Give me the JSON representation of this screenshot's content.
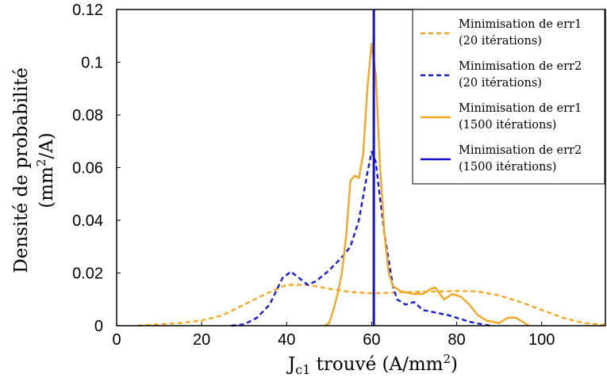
{
  "chart_data": {
    "type": "line",
    "xlabel_main": "J",
    "xlabel_sub": "c1",
    "xlabel_rest": " trouvé (A/mm",
    "xlabel_sup": "2",
    "xlabel_end": ")",
    "ylabel_line1": "Densité de probabilité",
    "ylabel_line2_pre": "(mm",
    "ylabel_line2_sup": "2",
    "ylabel_line2_post": "/A)",
    "xlim": [
      0,
      115
    ],
    "ylim": [
      0,
      0.12
    ],
    "xticks": [
      {
        "value": 0,
        "label": "0"
      },
      {
        "value": 20,
        "label": "20"
      },
      {
        "value": 40,
        "label": "40"
      },
      {
        "value": 60,
        "label": "60"
      },
      {
        "value": 80,
        "label": "80"
      },
      {
        "value": 100,
        "label": "100"
      }
    ],
    "yticks": [
      {
        "value": 0,
        "label": "0"
      },
      {
        "value": 0.02,
        "label": "0.02"
      },
      {
        "value": 0.04,
        "label": "0.04"
      },
      {
        "value": 0.06,
        "label": "0.06"
      },
      {
        "value": 0.08,
        "label": "0.08"
      },
      {
        "value": 0.1,
        "label": "0.1"
      },
      {
        "value": 0.12,
        "label": "0.12"
      }
    ],
    "grid": false,
    "legend_position": "top-right",
    "series": [
      {
        "name_line1": "Minimisation de err1",
        "name_line2": "(20 itérations)",
        "color": "#f5a623",
        "style": "dashed",
        "points": [
          [
            5,
            0
          ],
          [
            10,
            0.0005
          ],
          [
            15,
            0.001
          ],
          [
            20,
            0.002
          ],
          [
            25,
            0.004
          ],
          [
            30,
            0.008
          ],
          [
            35,
            0.012
          ],
          [
            40,
            0.0155
          ],
          [
            45,
            0.0155
          ],
          [
            50,
            0.014
          ],
          [
            55,
            0.0128
          ],
          [
            60,
            0.0123
          ],
          [
            65,
            0.0125
          ],
          [
            70,
            0.0128
          ],
          [
            75,
            0.013
          ],
          [
            80,
            0.0132
          ],
          [
            85,
            0.013
          ],
          [
            90,
            0.0115
          ],
          [
            95,
            0.009
          ],
          [
            100,
            0.006
          ],
          [
            105,
            0.003
          ],
          [
            110,
            0.001
          ],
          [
            115,
            0.0003
          ]
        ]
      },
      {
        "name_line1": "Minimisation de err2",
        "name_line2": "(20 itérations)",
        "color": "#1a1adb",
        "style": "dashed",
        "points": [
          [
            27,
            0
          ],
          [
            30,
            0.0005
          ],
          [
            33,
            0.003
          ],
          [
            36,
            0.008
          ],
          [
            39,
            0.018
          ],
          [
            41,
            0.0205
          ],
          [
            43,
            0.018
          ],
          [
            45,
            0.0155
          ],
          [
            47,
            0.017
          ],
          [
            50,
            0.021
          ],
          [
            53,
            0.026
          ],
          [
            55,
            0.03
          ],
          [
            57,
            0.04
          ],
          [
            59,
            0.058
          ],
          [
            60,
            0.066
          ],
          [
            61,
            0.062
          ],
          [
            62,
            0.048
          ],
          [
            63,
            0.035
          ],
          [
            64,
            0.025
          ],
          [
            65,
            0.015
          ],
          [
            66,
            0.01
          ],
          [
            68,
            0.008
          ],
          [
            70,
            0.009
          ],
          [
            72,
            0.006
          ],
          [
            75,
            0.005
          ],
          [
            78,
            0.004
          ],
          [
            80,
            0.003
          ],
          [
            83,
            0.0015
          ],
          [
            86,
            0.0005
          ],
          [
            88,
            0
          ]
        ]
      },
      {
        "name_line1": "Minimisation de err1",
        "name_line2": "(1500 itérations)",
        "color": "#f5a623",
        "style": "solid",
        "points": [
          [
            49,
            0
          ],
          [
            50,
            0.001
          ],
          [
            51,
            0.006
          ],
          [
            52,
            0.012
          ],
          [
            53,
            0.02
          ],
          [
            54,
            0.034
          ],
          [
            55,
            0.055
          ],
          [
            56,
            0.057
          ],
          [
            57,
            0.056
          ],
          [
            58,
            0.065
          ],
          [
            59,
            0.09
          ],
          [
            60,
            0.107
          ],
          [
            61,
            0.095
          ],
          [
            62,
            0.06
          ],
          [
            63,
            0.035
          ],
          [
            64,
            0.02
          ],
          [
            65,
            0.015
          ],
          [
            67,
            0.013
          ],
          [
            70,
            0.012
          ],
          [
            72,
            0.012
          ],
          [
            74,
            0.014
          ],
          [
            75,
            0.0145
          ],
          [
            77,
            0.01
          ],
          [
            79,
            0.012
          ],
          [
            81,
            0.011
          ],
          [
            83,
            0.008
          ],
          [
            85,
            0.004
          ],
          [
            87,
            0.002
          ],
          [
            90,
            0.001
          ],
          [
            92,
            0.003
          ],
          [
            94,
            0.003
          ],
          [
            96,
            0.001
          ],
          [
            97,
            0
          ]
        ]
      },
      {
        "name_line1": "Minimisation de err2",
        "name_line2": "(1500 itérations)",
        "color": "#1010cc",
        "style": "solid",
        "points": [
          [
            60.5,
            0
          ],
          [
            60.5,
            0.12
          ]
        ]
      }
    ]
  }
}
